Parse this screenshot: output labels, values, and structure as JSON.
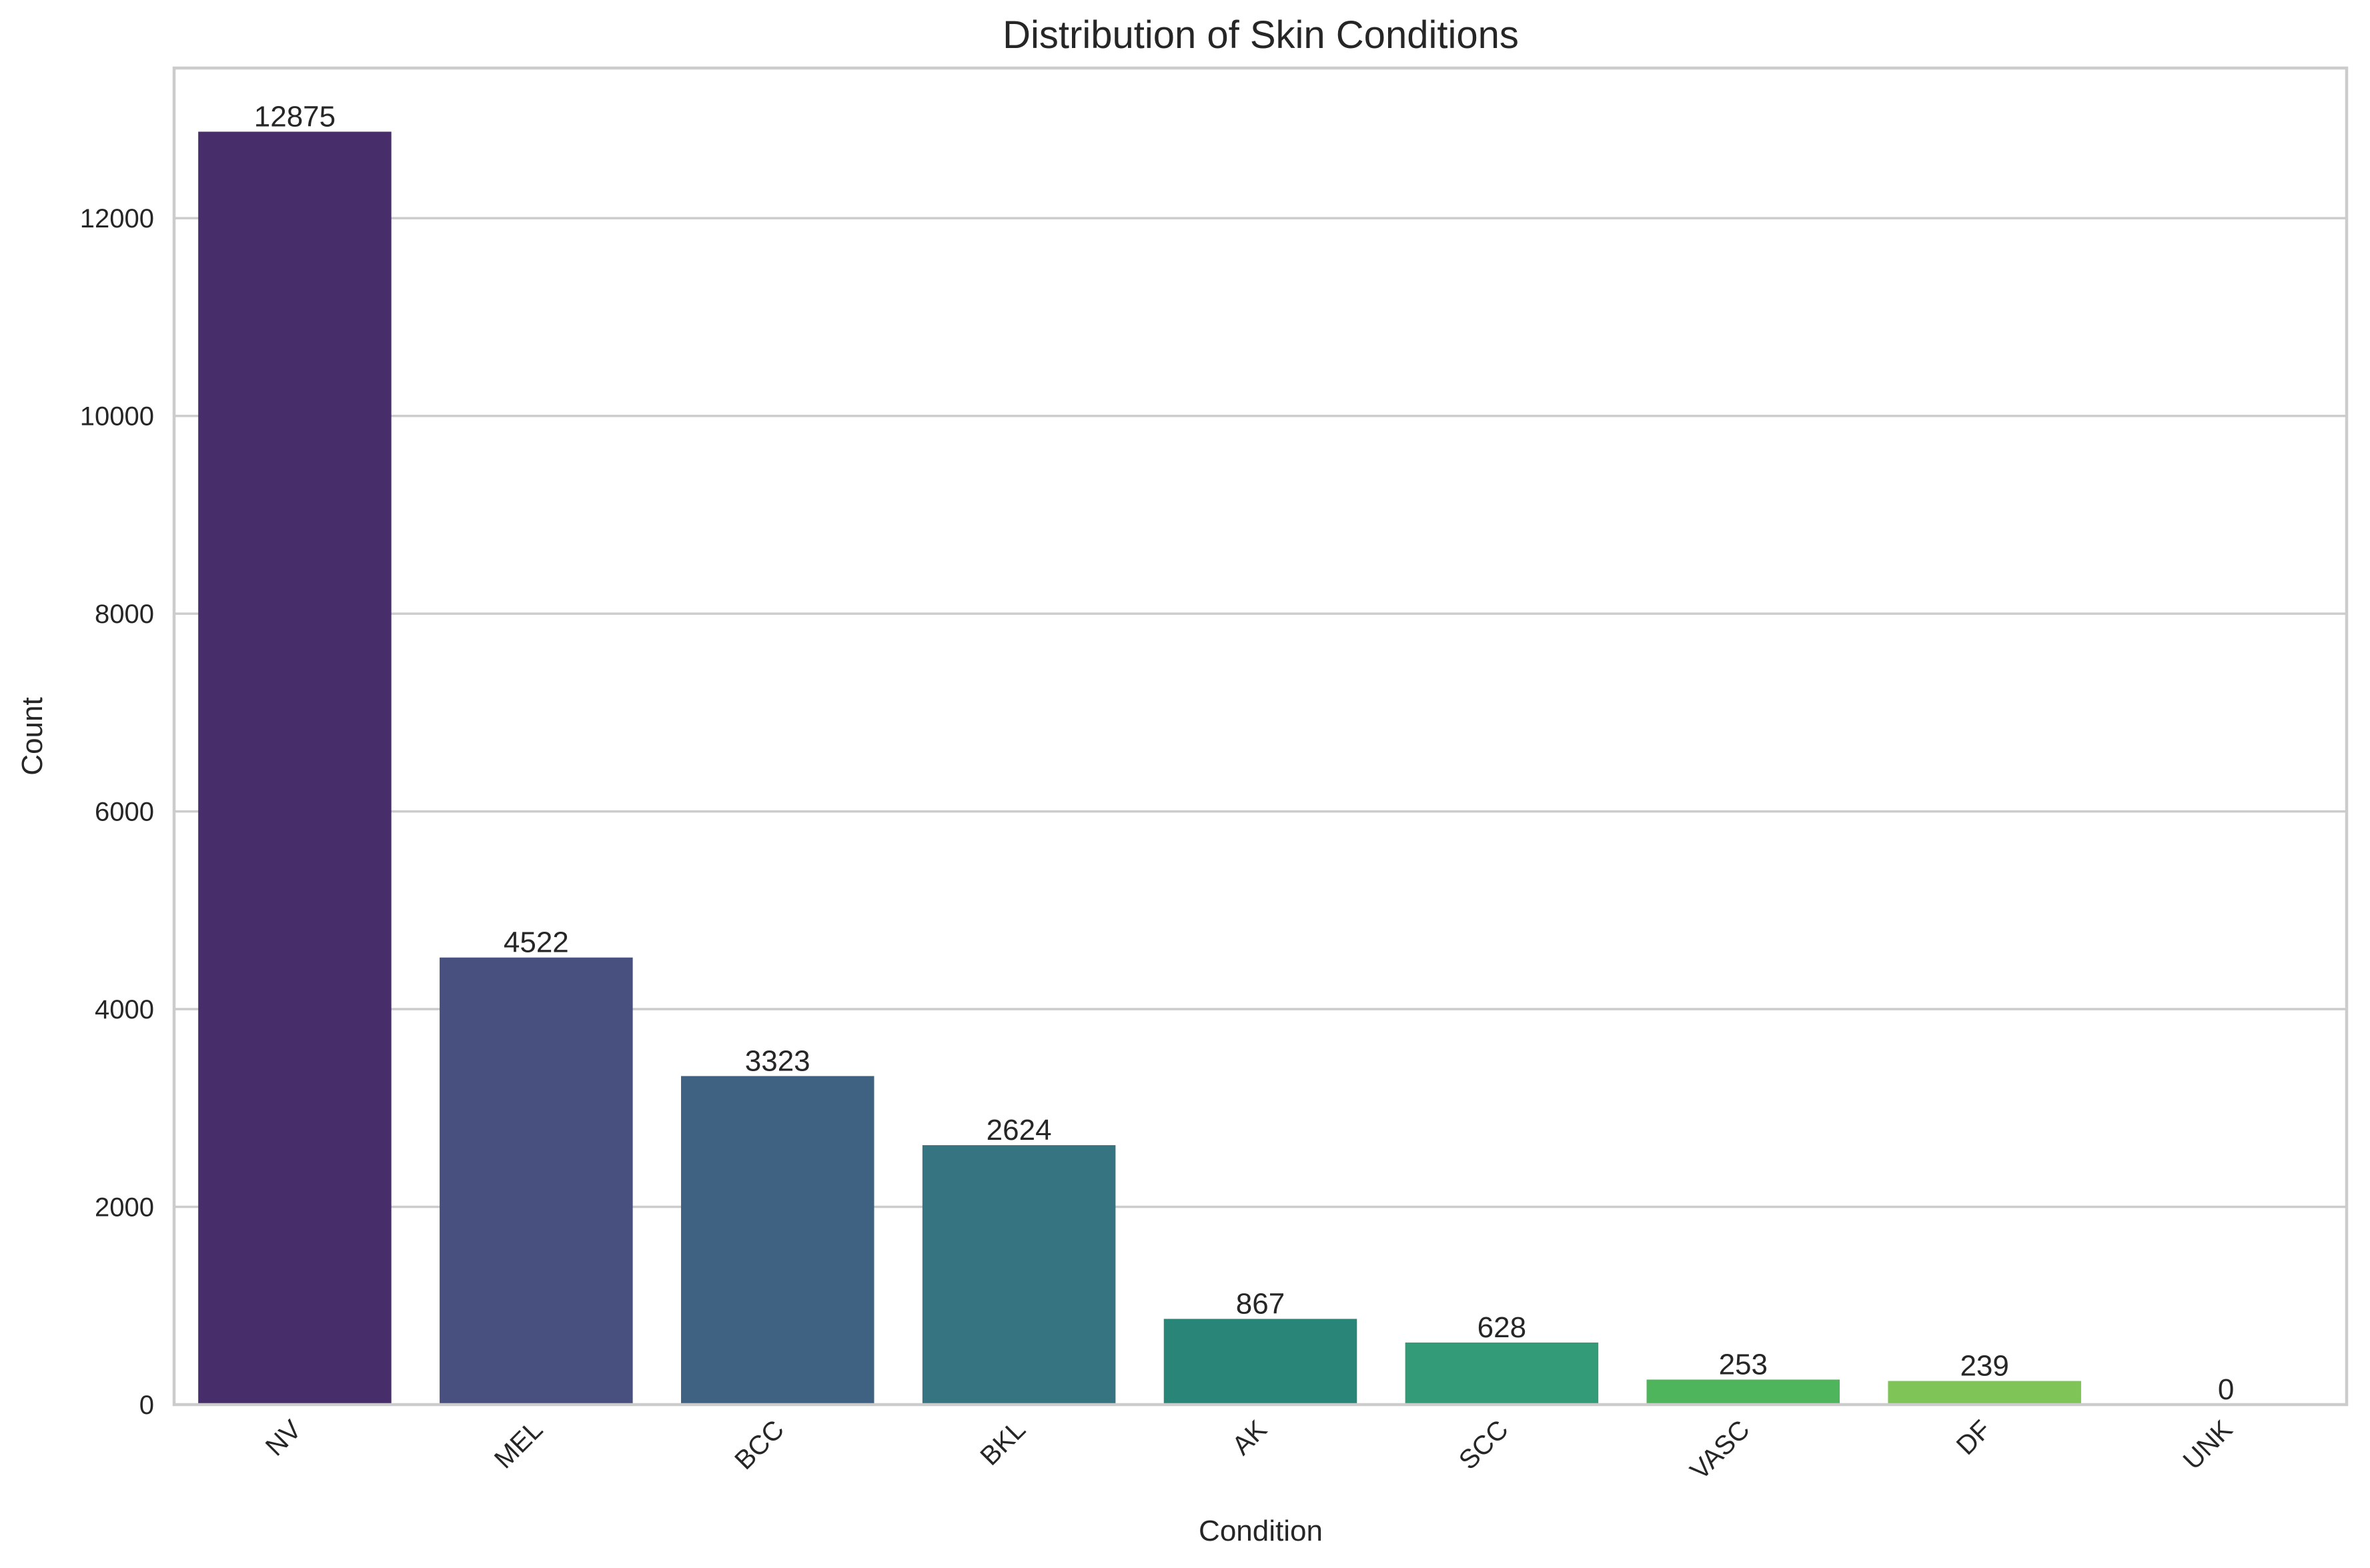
{
  "chart_data": {
    "type": "bar",
    "title": "Distribution of Skin Conditions",
    "xlabel": "Condition",
    "ylabel": "Count",
    "categories": [
      "NV",
      "MEL",
      "BCC",
      "BKL",
      "AK",
      "SCC",
      "VASC",
      "DF",
      "UNK"
    ],
    "values": [
      12875,
      4522,
      3323,
      2624,
      867,
      628,
      253,
      239,
      0
    ],
    "data_labels": [
      "12875",
      "4522",
      "3323",
      "2624",
      "867",
      "628",
      "253",
      "239",
      "0"
    ],
    "yticks": [
      0,
      2000,
      4000,
      6000,
      8000,
      10000,
      12000
    ],
    "ytick_labels": [
      "0",
      "2000",
      "4000",
      "6000",
      "8000",
      "10000",
      "12000"
    ],
    "ylim": [
      0,
      13519
    ],
    "grid": "horizontal",
    "palette": "viridis",
    "colors": [
      "#482d6b",
      "#47507e",
      "#3f6282",
      "#367481",
      "#2a8579",
      "#339b77",
      "#4eb55c",
      "#7ec457",
      "#c3d83d"
    ]
  }
}
